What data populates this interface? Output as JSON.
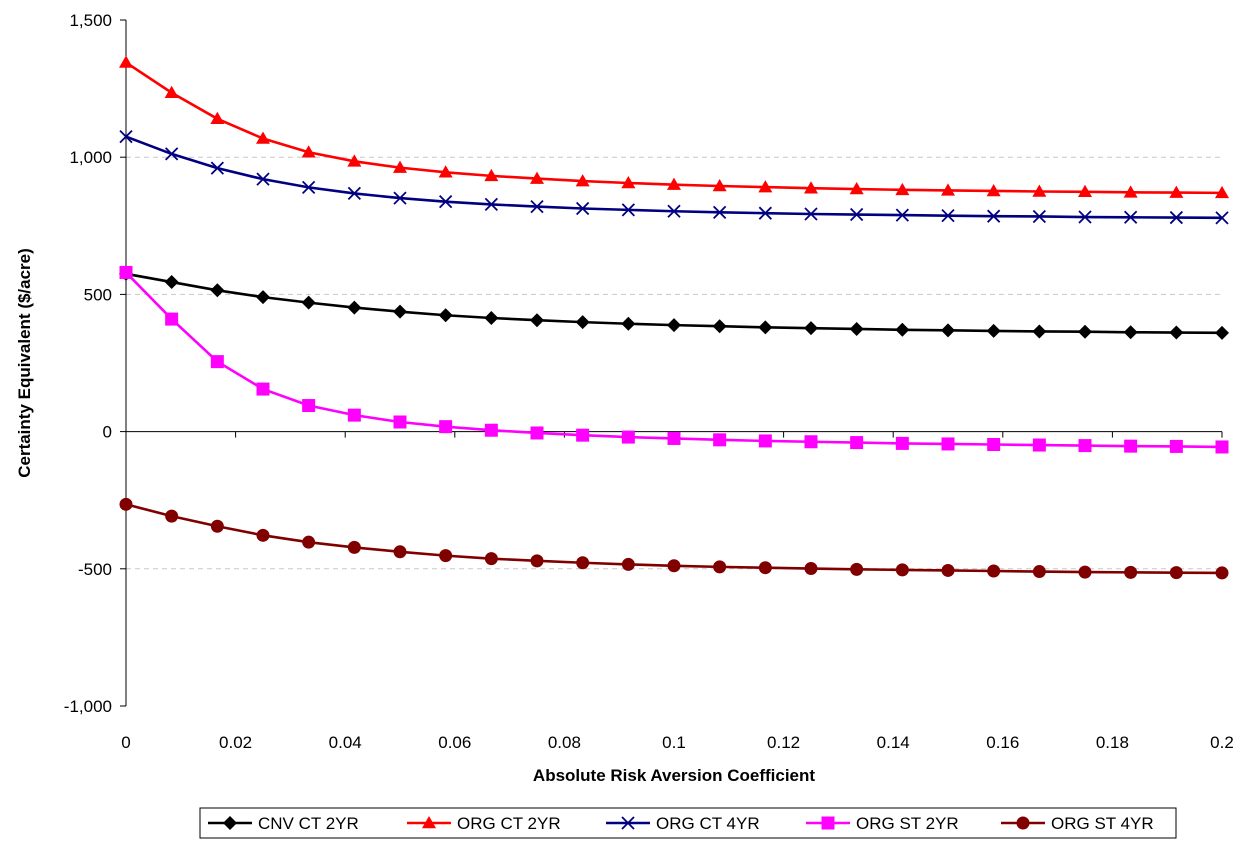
{
  "chart_data": {
    "type": "line",
    "title": "",
    "xlabel": "Absolute Risk Aversion Coefficient",
    "ylabel": "Certainty Equivalent ($/acre)",
    "xlim": [
      0,
      0.2
    ],
    "ylim": [
      -1000,
      1500
    ],
    "x_ticks": [
      "0",
      "0.02",
      "0.04",
      "0.06",
      "0.08",
      "0.1",
      "0.12",
      "0.14",
      "0.16",
      "0.18",
      "0.2"
    ],
    "y_ticks": [
      "1,500",
      "1,000",
      "500",
      "0",
      "-500",
      "-1,000"
    ],
    "grid": "horizontal dashed",
    "legend_position": "bottom",
    "x": [
      0,
      0.00833,
      0.01667,
      0.025,
      0.03333,
      0.04167,
      0.05,
      0.05833,
      0.06667,
      0.075,
      0.08333,
      0.09167,
      0.1,
      0.10833,
      0.11667,
      0.125,
      0.13333,
      0.14167,
      0.15,
      0.15833,
      0.16667,
      0.175,
      0.18333,
      0.19167,
      0.2
    ],
    "series": [
      {
        "name": "CNV CT 2YR",
        "color": "#000000",
        "marker": "diamond",
        "values": [
          575,
          545,
          515,
          490,
          470,
          452,
          437,
          424,
          414,
          406,
          399,
          393,
          388,
          384,
          380,
          377,
          374,
          371,
          369,
          367,
          365,
          364,
          362,
          361,
          360
        ]
      },
      {
        "name": "ORG CT 2YR",
        "color": "#ff0000",
        "marker": "triangle",
        "values": [
          1345,
          1235,
          1140,
          1068,
          1018,
          985,
          962,
          945,
          932,
          922,
          913,
          906,
          900,
          895,
          891,
          887,
          884,
          881,
          879,
          877,
          875,
          874,
          872,
          871,
          870
        ]
      },
      {
        "name": "ORG CT 4YR",
        "color": "#000080",
        "marker": "x",
        "values": [
          1075,
          1012,
          960,
          920,
          890,
          868,
          851,
          838,
          828,
          820,
          813,
          808,
          803,
          799,
          796,
          793,
          791,
          789,
          787,
          785,
          784,
          782,
          781,
          780,
          779
        ]
      },
      {
        "name": "ORG ST 2YR",
        "color": "#ff00ff",
        "marker": "square",
        "values": [
          580,
          410,
          255,
          155,
          95,
          60,
          35,
          18,
          5,
          -5,
          -13,
          -20,
          -25,
          -30,
          -34,
          -37,
          -40,
          -43,
          -45,
          -47,
          -49,
          -51,
          -53,
          -54,
          -56
        ]
      },
      {
        "name": "ORG ST 4YR",
        "color": "#800000",
        "marker": "circle",
        "values": [
          -265,
          -308,
          -345,
          -378,
          -403,
          -422,
          -438,
          -452,
          -463,
          -471,
          -478,
          -484,
          -489,
          -493,
          -496,
          -499,
          -502,
          -504,
          -506,
          -508,
          -510,
          -512,
          -513,
          -514,
          -515
        ]
      }
    ]
  }
}
